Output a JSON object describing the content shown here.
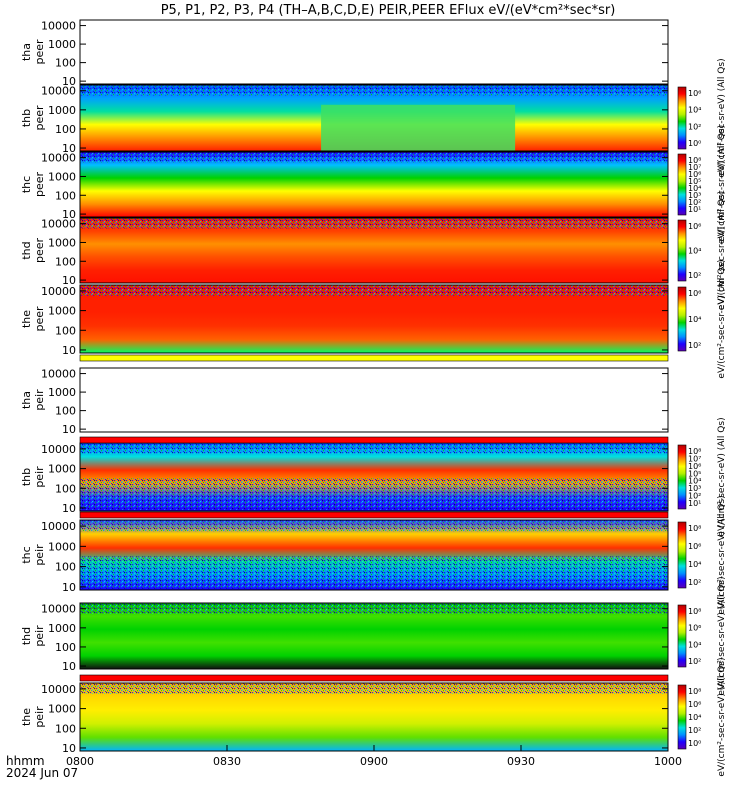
{
  "title": "P5, P1, P2, P3, P4 (TH–A,B,C,D,E) PEIR,PEER EFlux eV/(eV*cm²*sec*sr)",
  "colors": {
    "flag_yellow": "#ffff00",
    "flag_red": "#ff0000",
    "colorscale": [
      "#ffffff",
      "#5a00b4",
      "#1e00ff",
      "#0090ff",
      "#00e0e0",
      "#00d200",
      "#b4f000",
      "#ffff00",
      "#ff9000",
      "#ff0000",
      "#b40000"
    ]
  },
  "time_axis": {
    "xlabel_line1": "hhmm",
    "xlabel_line2": "2024 Jun 07",
    "ticks": [
      "0800",
      "0830",
      "0900",
      "0930",
      "1000"
    ],
    "range": [
      "0800",
      "1000"
    ]
  },
  "chart_data": [
    {
      "type": "heatmap",
      "probe": "tha",
      "species": "peer",
      "ylabel": [
        "tha",
        "peer"
      ],
      "yscale": "log",
      "yticks": [
        "10000",
        "1000",
        "100",
        "10"
      ],
      "ylim": [
        7,
        20000
      ],
      "has_data": false
    },
    {
      "type": "heatmap",
      "probe": "thb",
      "species": "peer",
      "ylabel": [
        "thb",
        "peer"
      ],
      "yscale": "log",
      "yticks": [
        "10000",
        "1000",
        "100",
        "10"
      ],
      "ylim": [
        7,
        20000
      ],
      "has_data": true,
      "colorbar": {
        "label": "eV/(cm²-sec-sr-eV) (All Qs)",
        "ticks": [
          "10⁶",
          "10⁴",
          "10²",
          "10⁰"
        ]
      }
    },
    {
      "type": "heatmap",
      "probe": "thc",
      "species": "peer",
      "ylabel": [
        "thc",
        "peer"
      ],
      "yscale": "log",
      "yticks": [
        "10000",
        "1000",
        "100",
        "10"
      ],
      "ylim": [
        7,
        20000
      ],
      "has_data": true,
      "colorbar": {
        "label": "eV/(cm²-sec-sr-eV) (All Qs)",
        "ticks": [
          "10⁸",
          "10⁷",
          "10⁶",
          "10⁵",
          "10⁴",
          "10³",
          "10²",
          "10¹"
        ]
      }
    },
    {
      "type": "heatmap",
      "probe": "thd",
      "species": "peer",
      "ylabel": [
        "thd",
        "peer"
      ],
      "yscale": "log",
      "yticks": [
        "10000",
        "1000",
        "100",
        "10"
      ],
      "ylim": [
        7,
        20000
      ],
      "has_data": true,
      "colorbar": {
        "label": "eV/(cm²-sec-sr-eV) (All Qs)",
        "ticks": [
          "10⁶",
          "10⁴",
          "10²"
        ]
      }
    },
    {
      "type": "heatmap",
      "probe": "the",
      "species": "peer",
      "ylabel": [
        "the",
        "peer"
      ],
      "yscale": "log",
      "yticks": [
        "10000",
        "1000",
        "100",
        "10"
      ],
      "ylim": [
        7,
        20000
      ],
      "has_data": true,
      "colorbar": {
        "label": "eV/(cm²-sec-sr-eV) (All Qs)",
        "ticks": [
          "10⁶",
          "10⁴",
          "10²"
        ]
      }
    },
    {
      "type": "heatmap",
      "probe": "tha",
      "species": "peir",
      "ylabel": [
        "tha",
        "peir"
      ],
      "yscale": "log",
      "yticks": [
        "10000",
        "1000",
        "100",
        "10"
      ],
      "ylim": [
        7,
        20000
      ],
      "has_data": false
    },
    {
      "type": "heatmap",
      "probe": "thb",
      "species": "peir",
      "ylabel": [
        "thb",
        "peir"
      ],
      "yscale": "log",
      "yticks": [
        "10000",
        "1000",
        "100",
        "10"
      ],
      "ylim": [
        7,
        20000
      ],
      "has_data": true,
      "colorbar": {
        "label": "eV/(cm²-sec-sr-eV) (All Qs)",
        "ticks": [
          "10⁸",
          "10⁷",
          "10⁶",
          "10⁵",
          "10⁴",
          "10³",
          "10²",
          "10¹"
        ]
      }
    },
    {
      "type": "heatmap",
      "probe": "thc",
      "species": "peir",
      "ylabel": [
        "thc",
        "peir"
      ],
      "yscale": "log",
      "yticks": [
        "10000",
        "1000",
        "100",
        "10"
      ],
      "ylim": [
        7,
        20000
      ],
      "has_data": true,
      "colorbar": {
        "label": "eV/(cm²-sec-sr-eV) (All Qs)",
        "ticks": [
          "10⁸",
          "10⁶",
          "10⁴",
          "10²"
        ]
      }
    },
    {
      "type": "heatmap",
      "probe": "thd",
      "species": "peir",
      "ylabel": [
        "thd",
        "peir"
      ],
      "yscale": "log",
      "yticks": [
        "10000",
        "1000",
        "100",
        "10"
      ],
      "ylim": [
        7,
        20000
      ],
      "has_data": true,
      "colorbar": {
        "label": "eV/(cm²-sec-sr-eV) (All Qs)",
        "ticks": [
          "10⁸",
          "10⁶",
          "10⁴",
          "10²"
        ]
      }
    },
    {
      "type": "heatmap",
      "probe": "the",
      "species": "peir",
      "ylabel": [
        "the",
        "peir"
      ],
      "yscale": "log",
      "yticks": [
        "10000",
        "1000",
        "100",
        "10"
      ],
      "ylim": [
        7,
        20000
      ],
      "has_data": true,
      "colorbar": {
        "label": "eV/(cm²-sec-sr-eV) (All Qs)",
        "ticks": [
          "10⁸",
          "10⁶",
          "10⁴",
          "10²",
          "10⁰"
        ]
      }
    }
  ]
}
